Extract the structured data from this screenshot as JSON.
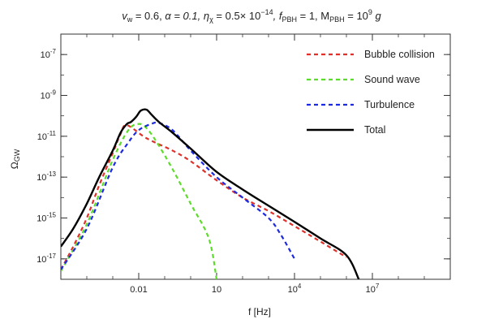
{
  "chart_data": {
    "type": "line",
    "title": {
      "vw": "v",
      "vw_sub": "w",
      "vw_val": " = 0.6,  ",
      "alpha": "α = 0.1,  ",
      "eta": "η",
      "eta_sub": "χ",
      "eta_val": " = 0.5× 10",
      "eta_exp": "−14",
      "f": ",  f",
      "f_sub": "PBH",
      "f_val": " = 1,  M",
      "m_sub": "PBH",
      "m_val": " = 10",
      "m_exp": "9",
      "m_unit": " g"
    },
    "xlabel": "f [Hz]",
    "ylabel": "Ω",
    "ylabel_sub": "GW",
    "x_scale": "log",
    "y_scale": "log",
    "xlim": [
      1e-05,
      10000000000.0
    ],
    "ylim": [
      1e-18,
      1e-06
    ],
    "x_ticks": [
      {
        "value": 0.01,
        "label": "0.01"
      },
      {
        "value": 10,
        "label": "10"
      },
      {
        "value": 10000,
        "label": "10",
        "exp": "4"
      },
      {
        "value": 10000000,
        "label": "10",
        "exp": "7"
      }
    ],
    "y_ticks": [
      {
        "value": 1e-07,
        "label": "10",
        "exp": "-7"
      },
      {
        "value": 1e-09,
        "label": "10",
        "exp": "-9"
      },
      {
        "value": 1e-11,
        "label": "10",
        "exp": "-11"
      },
      {
        "value": 1e-13,
        "label": "10",
        "exp": "-13"
      },
      {
        "value": 1e-15,
        "label": "10",
        "exp": "-15"
      },
      {
        "value": 1e-17,
        "label": "10",
        "exp": "-17"
      }
    ],
    "legend_position": "top-right",
    "series": [
      {
        "name": "Bubble collision",
        "color": "#e0302a",
        "dash": true,
        "x": [
          1e-05,
          3e-05,
          0.0001,
          0.0003,
          0.001,
          0.002,
          0.0035,
          0.02,
          0.2,
          1,
          10,
          100,
          1000,
          10000,
          100000.0,
          1000000.0
        ],
        "y": [
          3e-18,
          4e-17,
          1e-15,
          4e-14,
          1.5e-12,
          1.3e-11,
          3.5e-11,
          8e-12,
          2e-12,
          6e-13,
          7e-14,
          1e-14,
          2.2e-15,
          4e-16,
          7e-17,
          1.2e-17
        ]
      },
      {
        "name": "Sound wave",
        "color": "#5cdc2a",
        "dash": true,
        "x": [
          1e-05,
          0.0001,
          0.001,
          0.004,
          0.01,
          0.02,
          0.05,
          0.2,
          1,
          5,
          10
        ],
        "y": [
          2.5e-18,
          5e-16,
          7e-13,
          2e-11,
          4e-11,
          2.5e-11,
          5e-12,
          2.5e-13,
          5e-15,
          1e-16,
          1e-18
        ]
      },
      {
        "name": "Turbulence",
        "color": "#1c2ae0",
        "dash": true,
        "x": [
          1e-05,
          0.0001,
          0.001,
          0.004,
          0.01,
          0.03,
          0.06,
          0.2,
          1,
          10,
          100,
          1000,
          3000,
          10000
        ],
        "y": [
          3e-18,
          3e-16,
          3e-13,
          5e-12,
          2e-11,
          4e-11,
          4.5e-11,
          2e-11,
          2e-12,
          1e-13,
          1e-14,
          1e-15,
          1.5e-16,
          1e-17
        ]
      },
      {
        "name": "Total",
        "color": "#000000",
        "dash": false,
        "x": [
          1e-05,
          3e-05,
          0.0001,
          0.0003,
          0.001,
          0.002,
          0.0035,
          0.005,
          0.008,
          0.012,
          0.02,
          0.03,
          0.06,
          0.2,
          1,
          10,
          100,
          1000,
          10000,
          100000.0,
          1000000.0,
          3000000.0
        ],
        "y": [
          4e-17,
          3e-16,
          5e-15,
          1e-13,
          2e-12,
          1.5e-11,
          4e-11,
          5e-11,
          9e-11,
          1.8e-10,
          2e-10,
          1.2e-10,
          5e-11,
          1.5e-11,
          2.5e-12,
          1.8e-13,
          2.5e-14,
          4e-15,
          6.5e-16,
          1e-16,
          1.5e-17,
          1e-18
        ]
      }
    ]
  }
}
